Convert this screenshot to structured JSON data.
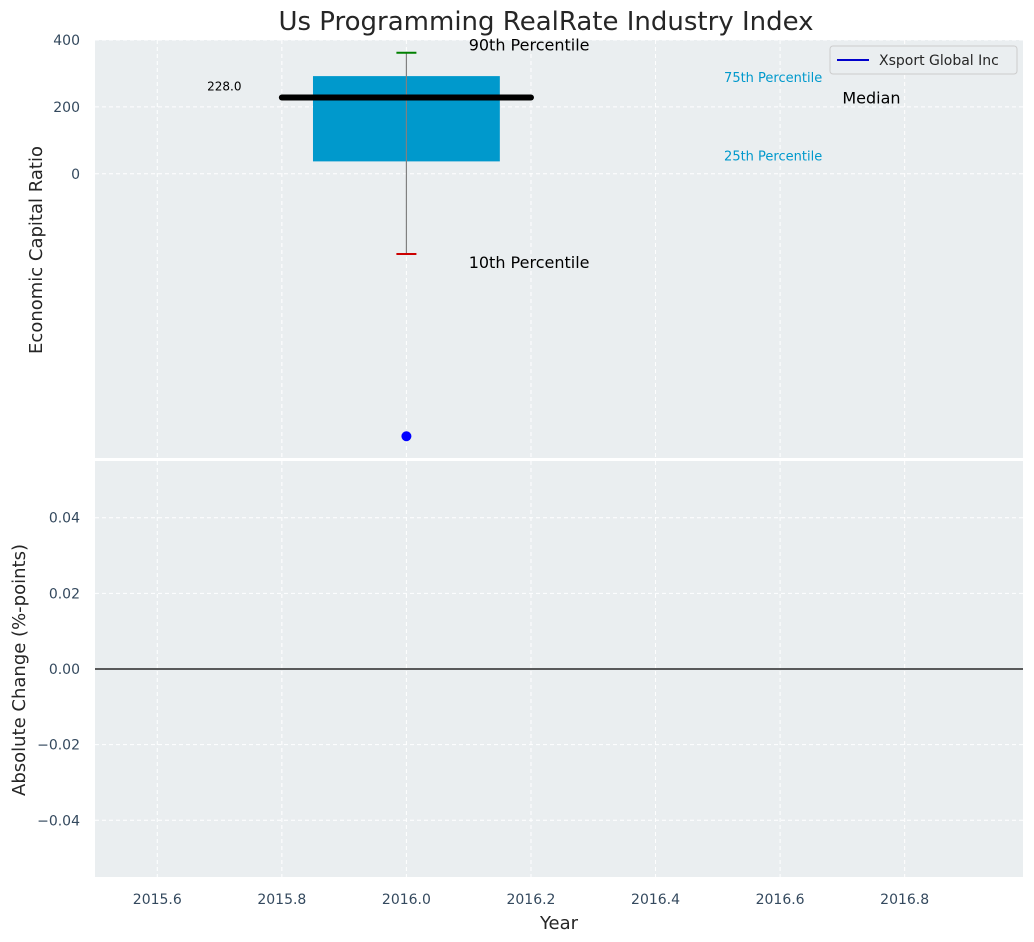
{
  "chart_data": [
    {
      "type": "box",
      "title": "Us Programming RealRate Industry Index",
      "ylabel": "Economic Capital Ratio",
      "ylim": [
        -850,
        400
      ],
      "yticks": [
        0,
        200,
        400
      ],
      "ytick_labels": [
        "0",
        "200",
        "400"
      ],
      "xlim": [
        2015.5,
        2016.99
      ],
      "grid": true,
      "box": {
        "x": 2016.0,
        "width": 0.3,
        "p10": -240,
        "p25": 37,
        "median": 228,
        "p75": 292,
        "p90": 362
      },
      "median_line": {
        "x_start": 2015.8,
        "x_end": 2016.2,
        "value": 228.0,
        "label": "228.0"
      },
      "point": {
        "x": 2016.0,
        "y": -785,
        "series": "Xsport Global Inc"
      },
      "annotations": {
        "p90": "90th Percentile",
        "p75": "75th Percentile",
        "median": "Median",
        "p25": "25th Percentile",
        "p10": "10th Percentile"
      },
      "legend": {
        "placement": "top-right",
        "entries": [
          "Xsport Global Inc"
        ]
      }
    },
    {
      "type": "line",
      "xlabel": "Year",
      "ylabel": "Absolute Change (%-points)",
      "ylim": [
        -0.055,
        0.055
      ],
      "yticks": [
        -0.04,
        -0.02,
        0.0,
        0.02,
        0.04
      ],
      "ytick_labels": [
        "−0.04",
        "−0.02",
        "0.00",
        "0.02",
        "0.04"
      ],
      "xlim": [
        2015.5,
        2016.99
      ],
      "xticks": [
        2015.6,
        2015.8,
        2016.0,
        2016.2,
        2016.4,
        2016.6,
        2016.8
      ],
      "xtick_labels": [
        "2015.6",
        "2015.8",
        "2016.0",
        "2016.2",
        "2016.4",
        "2016.6",
        "2016.8"
      ],
      "reference_line": 0.0,
      "grid": true
    }
  ],
  "colors": {
    "plot_bg": "#eaeef0",
    "grid": "#ffffff",
    "box_fill": "#0099cc",
    "median": "#000000",
    "whisker": "#808080",
    "p90_cap": "#008000",
    "p10_cap": "#cc0000",
    "point": "#0000ff",
    "legend_line": "#0000cc",
    "percentile_label": "#0099cc",
    "tick_text": "#34495e"
  }
}
